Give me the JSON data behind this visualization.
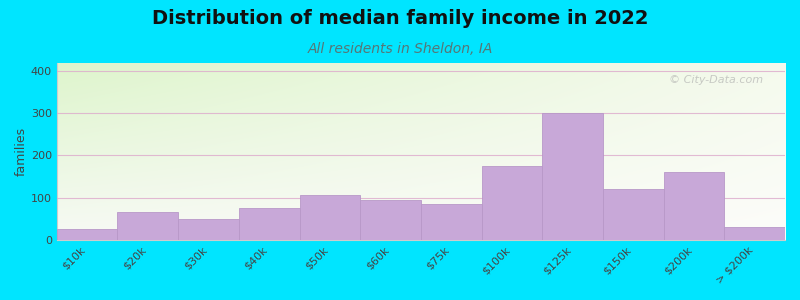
{
  "categories": [
    "$10k",
    "$20k",
    "$30k",
    "$40k",
    "$50k",
    "$60k",
    "$75k",
    "$100k",
    "$125k",
    "$150k",
    "$200k",
    "> $200k"
  ],
  "values": [
    25,
    65,
    50,
    75,
    105,
    95,
    85,
    175,
    300,
    120,
    160,
    30
  ],
  "bar_color": "#c8a8d8",
  "bar_edgecolor": "#b898c8",
  "title": "Distribution of median family income in 2022",
  "subtitle": "All residents in Sheldon, IA",
  "ylabel": "families",
  "ylim": [
    0,
    420
  ],
  "yticks": [
    0,
    100,
    200,
    300,
    400
  ],
  "background_color": "#00e5ff",
  "title_fontsize": 14,
  "subtitle_fontsize": 10,
  "subtitle_color": "#557777",
  "watermark_text": "© City-Data.com",
  "grid_color": "#ddaacc",
  "grid_alpha": 0.8,
  "tick_fontsize": 8,
  "ylabel_fontsize": 9
}
